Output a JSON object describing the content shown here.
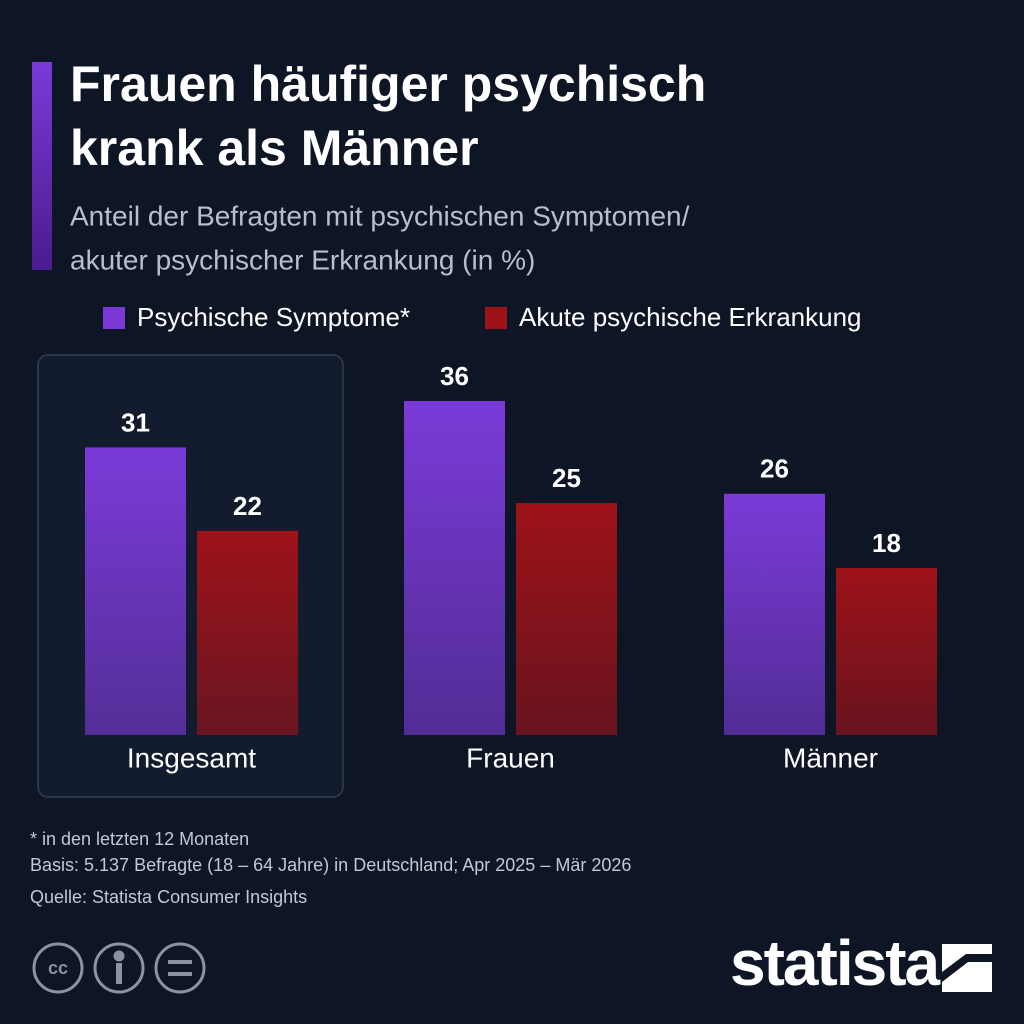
{
  "chart_data": {
    "type": "bar",
    "title": [
      "Frauen häufiger psychisch",
      "krank als Männer"
    ],
    "subtitle": [
      "Anteil der Befragten mit psychischen Symptomen/",
      "akuter psychischer Erkrankung (in %)"
    ],
    "categories": [
      "Insgesamt",
      "Frauen",
      "Männer"
    ],
    "series": [
      {
        "name": "Psychische Symptome*",
        "color": "#7b3ad8",
        "values": [
          31,
          36,
          26
        ]
      },
      {
        "name": "Akute psychische Erkrankung",
        "color": "#9e1219",
        "values": [
          22,
          25,
          18
        ]
      }
    ],
    "notes": [
      "* in den letzten 12 Monaten",
      "Basis: 5.137 Befragte (18 – 64 Jahre) in Deutschland; Apr 2025 – Mär 2026",
      "Quelle: Statista Consumer Insights"
    ],
    "license": "cc",
    "brand": "statista"
  }
}
